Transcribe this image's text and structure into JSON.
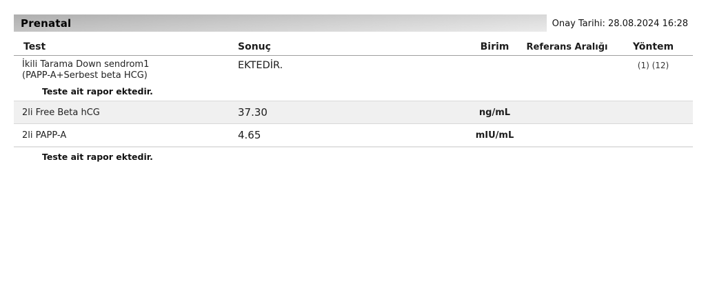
{
  "report": {
    "section_title": "Prenatal",
    "approval_date_label": "Onay Tarihi: 28.08.2024 16:28",
    "columns": {
      "test": "Test",
      "sonuc": "Sonuç",
      "birim": "Birim",
      "referans": "Referans Aralığı",
      "yontem": "Yöntem"
    },
    "rows": [
      {
        "test_line1": "İkili Tarama Down sendrom1",
        "test_line2": "(PAPP-A+Serbest beta HCG)",
        "sonuc": "EKTEDİR.",
        "birim": "",
        "referans": "",
        "yontem": "(1) (12)",
        "note": "Teste ait rapor ektedir."
      },
      {
        "test": "2li Free Beta hCG",
        "sonuc": "37.30",
        "birim": "ng/mL",
        "referans": "",
        "yontem": ""
      },
      {
        "test": "2li PAPP-A",
        "sonuc": "4.65",
        "birim": "mIU/mL",
        "referans": "",
        "yontem": ""
      }
    ],
    "footer_note": "Teste ait rapor ektedir."
  },
  "colors": {
    "section_bar_gradient_start": "#bcbcbc",
    "section_bar_gradient_end": "#e8e8e8",
    "shaded_row_background": "#f0f0f0",
    "row_border": "#d8d8d8",
    "header_underline": "#9f9f9f",
    "text": "#1c1c1c"
  }
}
